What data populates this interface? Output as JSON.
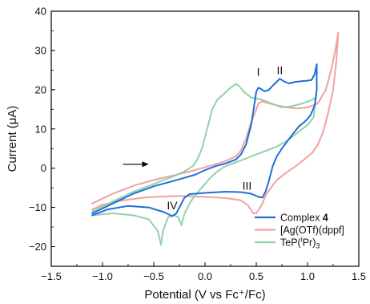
{
  "chart_data": {
    "type": "line",
    "title": "",
    "xlabel": "Potential (V vs Fc⁺/Fc)",
    "ylabel": "Current (μA)",
    "xlim": [
      -1.5,
      1.5
    ],
    "ylim": [
      -25,
      40
    ],
    "xticks": [
      -1.5,
      -1.0,
      -0.5,
      0.0,
      0.5,
      1.0,
      1.5
    ],
    "xtick_labels": [
      "−1.5",
      "−1.0",
      "−0.5",
      "0.0",
      "0.5",
      "1.0",
      "1.5"
    ],
    "yticks": [
      -20,
      -10,
      0,
      10,
      20,
      30,
      40
    ],
    "ytick_labels": [
      "−20",
      "−10",
      "0",
      "10",
      "20",
      "30",
      "40"
    ],
    "grid": false,
    "legend_position": "bottom-right",
    "series": [
      {
        "name": "Complex 4",
        "color": "#1f6fd6",
        "width": 2.0,
        "segments": [
          [
            [
              -1.1,
              -11.5
            ],
            [
              -0.9,
              -9
            ],
            [
              -0.7,
              -6.5
            ],
            [
              -0.5,
              -4.6
            ],
            [
              -0.3,
              -3.2
            ],
            [
              -0.1,
              -1.7
            ],
            [
              0.0,
              -0.5
            ],
            [
              0.1,
              0.5
            ],
            [
              0.2,
              1.2
            ],
            [
              0.3,
              2.2
            ],
            [
              0.35,
              3.5
            ],
            [
              0.4,
              6.0
            ],
            [
              0.45,
              11.0
            ],
            [
              0.48,
              16.0
            ],
            [
              0.5,
              19.5
            ],
            [
              0.52,
              20.5
            ],
            [
              0.54,
              20.3
            ],
            [
              0.58,
              19.6
            ],
            [
              0.62,
              19.9
            ],
            [
              0.67,
              21.3
            ],
            [
              0.71,
              22.3
            ],
            [
              0.73,
              22.8
            ],
            [
              0.77,
              22.1
            ],
            [
              0.82,
              21.6
            ],
            [
              0.88,
              22.0
            ],
            [
              0.95,
              22.2
            ],
            [
              1.0,
              22.3
            ],
            [
              1.04,
              22.5
            ],
            [
              1.07,
              24.0
            ],
            [
              1.09,
              26.5
            ],
            [
              1.09,
              20.0
            ],
            [
              1.07,
              16.0
            ],
            [
              1.03,
              13.5
            ],
            [
              0.98,
              12.0
            ],
            [
              0.92,
              10.8
            ],
            [
              0.85,
              8.5
            ],
            [
              0.75,
              5.0
            ],
            [
              0.7,
              3.0
            ],
            [
              0.66,
              0.5
            ],
            [
              0.62,
              -3.5
            ],
            [
              0.59,
              -6.0
            ],
            [
              0.56,
              -7.5
            ],
            [
              0.52,
              -7.3
            ],
            [
              0.45,
              -6.5
            ],
            [
              0.35,
              -6.1
            ],
            [
              0.2,
              -6.0
            ],
            [
              0.0,
              -6.3
            ],
            [
              -0.15,
              -6.6
            ],
            [
              -0.2,
              -7.5
            ],
            [
              -0.25,
              -10.0
            ],
            [
              -0.28,
              -11.5
            ],
            [
              -0.32,
              -12.2
            ],
            [
              -0.4,
              -11.2
            ],
            [
              -0.55,
              -10.0
            ],
            [
              -0.75,
              -9.6
            ],
            [
              -0.95,
              -10.5
            ],
            [
              -1.1,
              -12.0
            ]
          ]
        ]
      },
      {
        "name": "[Ag(OTf)(dppf]",
        "color": "#f2a0a0",
        "width": 2.0,
        "segments": [
          [
            [
              -1.1,
              -9.0
            ],
            [
              -0.9,
              -6.5
            ],
            [
              -0.7,
              -4.5
            ],
            [
              -0.5,
              -3.0
            ],
            [
              -0.3,
              -1.8
            ],
            [
              -0.1,
              -0.5
            ],
            [
              0.1,
              1.0
            ],
            [
              0.2,
              1.8
            ],
            [
              0.3,
              3.0
            ],
            [
              0.35,
              4.5
            ],
            [
              0.4,
              7.5
            ],
            [
              0.44,
              11.0
            ],
            [
              0.48,
              13.5
            ],
            [
              0.52,
              16.5
            ],
            [
              0.56,
              17.0
            ],
            [
              0.6,
              16.7
            ],
            [
              0.7,
              16.0
            ],
            [
              0.8,
              15.5
            ],
            [
              0.9,
              15.2
            ],
            [
              1.0,
              15.5
            ],
            [
              1.1,
              16.5
            ],
            [
              1.18,
              20.0
            ],
            [
              1.23,
              25.0
            ],
            [
              1.27,
              30.0
            ],
            [
              1.3,
              34.5
            ],
            [
              1.28,
              27.0
            ],
            [
              1.25,
              20.0
            ],
            [
              1.2,
              14.0
            ],
            [
              1.15,
              9.0
            ],
            [
              1.1,
              6.0
            ],
            [
              1.05,
              4.0
            ],
            [
              0.98,
              2.5
            ],
            [
              0.9,
              0.8
            ],
            [
              0.8,
              -1.0
            ],
            [
              0.7,
              -3.0
            ],
            [
              0.6,
              -6.5
            ],
            [
              0.55,
              -9.5
            ],
            [
              0.5,
              -11.5
            ],
            [
              0.47,
              -11.5
            ],
            [
              0.42,
              -9.5
            ],
            [
              0.35,
              -8.2
            ],
            [
              0.2,
              -7.6
            ],
            [
              0.0,
              -7.3
            ],
            [
              -0.2,
              -7.1
            ],
            [
              -0.4,
              -7.2
            ],
            [
              -0.6,
              -7.5
            ],
            [
              -0.8,
              -8.2
            ],
            [
              -1.0,
              -9.3
            ],
            [
              -1.1,
              -10.5
            ]
          ]
        ]
      },
      {
        "name": "TeP(iPr)3",
        "color": "#8fd3a8",
        "width": 2.0,
        "segments": [
          [
            [
              -1.1,
              -11.0
            ],
            [
              -0.9,
              -8.5
            ],
            [
              -0.7,
              -6.0
            ],
            [
              -0.5,
              -4.0
            ],
            [
              -0.3,
              -2.0
            ],
            [
              -0.2,
              -0.8
            ],
            [
              -0.12,
              0.5
            ],
            [
              -0.08,
              2.0
            ],
            [
              -0.03,
              5.0
            ],
            [
              0.02,
              10.0
            ],
            [
              0.07,
              15.0
            ],
            [
              0.12,
              17.5
            ],
            [
              0.18,
              18.8
            ],
            [
              0.24,
              20.3
            ],
            [
              0.3,
              21.5
            ],
            [
              0.33,
              21.0
            ],
            [
              0.38,
              19.5
            ],
            [
              0.45,
              18.0
            ],
            [
              0.55,
              17.5
            ],
            [
              0.65,
              16.5
            ],
            [
              0.75,
              15.5
            ],
            [
              0.85,
              15.8
            ],
            [
              0.95,
              16.5
            ],
            [
              1.05,
              17.5
            ],
            [
              1.08,
              18.0
            ],
            [
              1.06,
              13.0
            ],
            [
              1.0,
              11.0
            ],
            [
              0.9,
              9.0
            ],
            [
              0.8,
              7.0
            ],
            [
              0.7,
              5.5
            ],
            [
              0.6,
              4.5
            ],
            [
              0.5,
              3.5
            ],
            [
              0.4,
              2.5
            ],
            [
              0.3,
              1.5
            ],
            [
              0.2,
              0.5
            ],
            [
              0.12,
              -0.8
            ],
            [
              0.05,
              -2.5
            ],
            [
              0.0,
              -4.0
            ],
            [
              -0.05,
              -5.5
            ],
            [
              -0.1,
              -7.0
            ],
            [
              -0.15,
              -9.0
            ],
            [
              -0.2,
              -11.5
            ],
            [
              -0.23,
              -14.5
            ],
            [
              -0.26,
              -12.5
            ],
            [
              -0.3,
              -12.0
            ],
            [
              -0.36,
              -12.5
            ],
            [
              -0.41,
              -16.0
            ],
            [
              -0.43,
              -19.5
            ],
            [
              -0.46,
              -16.0
            ],
            [
              -0.55,
              -13.0
            ],
            [
              -0.7,
              -12.0
            ],
            [
              -0.9,
              -11.5
            ],
            [
              -1.1,
              -12.0
            ]
          ]
        ]
      }
    ],
    "legend": [
      {
        "label_main": "Complex ",
        "label_bold": "4",
        "label_rest": "",
        "color": "#1f6fd6"
      },
      {
        "label_main": "[Ag(OTf)(dppf]",
        "label_bold": "",
        "label_rest": "",
        "color": "#f2a0a0"
      },
      {
        "label_main": "TeP(",
        "label_sup": "i",
        "label_rest": "Pr)",
        "label_sub": "3",
        "color": "#8fd3a8"
      }
    ],
    "annotations": [
      {
        "text": "I",
        "x": 0.52,
        "y": 23.5
      },
      {
        "text": "II",
        "x": 0.73,
        "y": 24.0
      },
      {
        "text": "III",
        "x": 0.41,
        "y": -5.5
      },
      {
        "text": "IV",
        "x": -0.32,
        "y": -10.5
      }
    ],
    "arrow": {
      "x_start": -0.8,
      "x_end": -0.55,
      "y": 1.0
    }
  }
}
